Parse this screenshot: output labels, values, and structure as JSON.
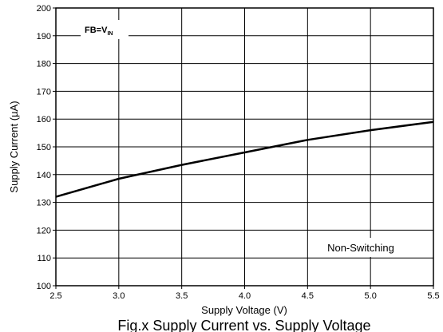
{
  "chart_data": {
    "type": "line",
    "xlabel": "Supply Voltage (V)",
    "ylabel": "Supply Current (µA)",
    "caption": "Fig.x Supply Current vs. Supply Voltage",
    "xlim": [
      2.5,
      5.5
    ],
    "ylim": [
      100,
      200
    ],
    "x_ticks": [
      "2.5",
      "3.0",
      "3.5",
      "4.0",
      "4.5",
      "5.0",
      "5.5"
    ],
    "y_ticks": [
      "100",
      "110",
      "120",
      "130",
      "140",
      "150",
      "160",
      "170",
      "180",
      "190",
      "200"
    ],
    "grid": true,
    "annotations": {
      "condition_main": "FB=V",
      "condition_sub": "IN",
      "mode": "Non-Switching"
    },
    "series": [
      {
        "x": [
          2.5,
          3.0,
          3.5,
          4.0,
          4.5,
          5.0,
          5.5
        ],
        "y": [
          132,
          138.5,
          143.5,
          148,
          152.5,
          156,
          159
        ]
      }
    ]
  }
}
